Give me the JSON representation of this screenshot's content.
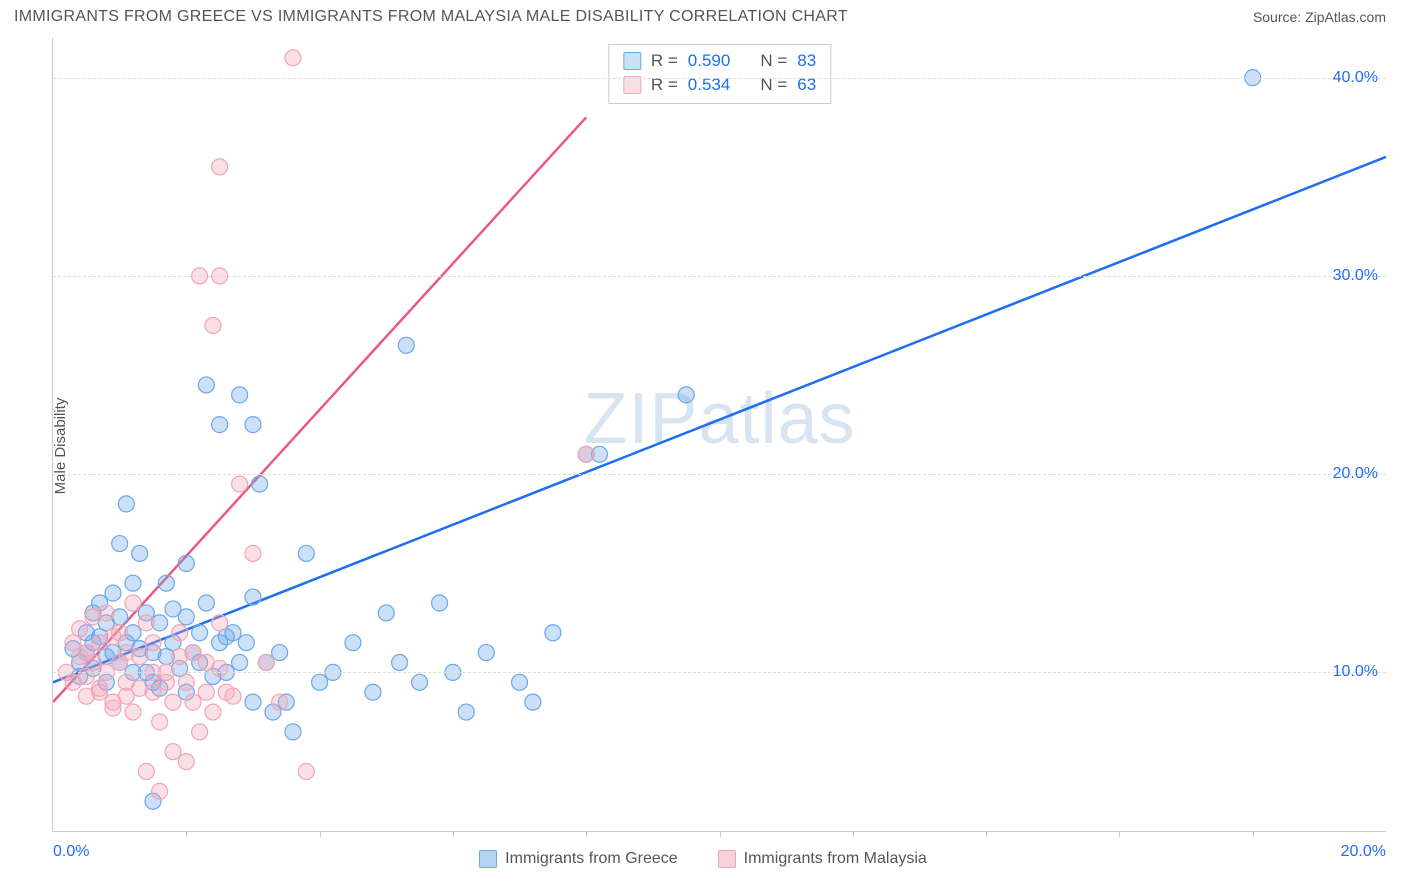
{
  "title": "IMMIGRANTS FROM GREECE VS IMMIGRANTS FROM MALAYSIA MALE DISABILITY CORRELATION CHART",
  "source": "Source: ZipAtlas.com",
  "watermark": "ZIPatlas",
  "ylabel": "Male Disability",
  "chart": {
    "type": "scatter",
    "background_color": "#ffffff",
    "grid_color": "#dddddd",
    "axis_color": "#cccccc",
    "tick_text_color": "#1e6ff0",
    "label_text_color": "#555555",
    "title_color": "#555555",
    "title_fontsize": 16,
    "label_fontsize": 15,
    "tick_fontsize": 16,
    "marker_radius": 8,
    "marker_fill_opacity": 0.35,
    "marker_stroke_width": 1.2,
    "xlim": [
      0,
      20
    ],
    "ylim": [
      2,
      42
    ],
    "x_ticks": [
      0,
      20
    ],
    "x_tick_labels": [
      "0.0%",
      "20.0%"
    ],
    "y_ticks": [
      10,
      20,
      30,
      40
    ],
    "y_tick_labels": [
      "10.0%",
      "20.0%",
      "30.0%",
      "40.0%"
    ],
    "x_minor_ticks": [
      2,
      4,
      6,
      8,
      10,
      12,
      14,
      16,
      18
    ],
    "series": [
      {
        "name": "Immigrants from Greece",
        "color": "#6ca7e8",
        "fill": "rgba(108,167,232,0.35)",
        "stroke": "#6ca7e8",
        "trend_color": "#1e6ff0",
        "trend": {
          "x1": 0,
          "y1": 9.5,
          "x2": 20,
          "y2": 36.0
        },
        "r_value": "0.590",
        "n_value": "83",
        "points": [
          [
            0.3,
            11.2
          ],
          [
            0.4,
            10.5
          ],
          [
            0.5,
            11.0
          ],
          [
            0.5,
            12.0
          ],
          [
            0.6,
            11.5
          ],
          [
            0.6,
            10.2
          ],
          [
            0.7,
            11.8
          ],
          [
            0.7,
            13.5
          ],
          [
            0.8,
            10.8
          ],
          [
            0.8,
            12.5
          ],
          [
            0.9,
            11.0
          ],
          [
            0.9,
            14.0
          ],
          [
            1.0,
            10.5
          ],
          [
            1.0,
            16.5
          ],
          [
            1.1,
            11.5
          ],
          [
            1.1,
            18.5
          ],
          [
            1.2,
            12.0
          ],
          [
            1.2,
            10.0
          ],
          [
            1.3,
            11.2
          ],
          [
            1.3,
            16.0
          ],
          [
            1.4,
            13.0
          ],
          [
            1.5,
            11.0
          ],
          [
            1.5,
            9.5
          ],
          [
            1.6,
            12.5
          ],
          [
            1.7,
            10.8
          ],
          [
            1.7,
            14.5
          ],
          [
            1.8,
            11.5
          ],
          [
            1.9,
            10.2
          ],
          [
            2.0,
            12.8
          ],
          [
            2.0,
            9.0
          ],
          [
            2.1,
            11.0
          ],
          [
            2.2,
            10.5
          ],
          [
            2.3,
            13.5
          ],
          [
            2.3,
            24.5
          ],
          [
            2.5,
            11.5
          ],
          [
            2.5,
            22.5
          ],
          [
            2.6,
            10.0
          ],
          [
            2.7,
            12.0
          ],
          [
            2.8,
            24.0
          ],
          [
            2.9,
            11.5
          ],
          [
            3.0,
            22.5
          ],
          [
            3.0,
            8.5
          ],
          [
            3.1,
            19.5
          ],
          [
            3.2,
            10.5
          ],
          [
            3.3,
            8.0
          ],
          [
            3.4,
            11.0
          ],
          [
            3.5,
            8.5
          ],
          [
            3.6,
            7.0
          ],
          [
            3.8,
            16.0
          ],
          [
            4.0,
            9.5
          ],
          [
            4.2,
            10.0
          ],
          [
            4.5,
            11.5
          ],
          [
            4.8,
            9.0
          ],
          [
            5.0,
            13.0
          ],
          [
            5.2,
            10.5
          ],
          [
            5.3,
            26.5
          ],
          [
            5.5,
            9.5
          ],
          [
            5.8,
            13.5
          ],
          [
            6.0,
            10.0
          ],
          [
            6.2,
            8.0
          ],
          [
            6.5,
            11.0
          ],
          [
            7.0,
            9.5
          ],
          [
            7.2,
            8.5
          ],
          [
            7.5,
            12.0
          ],
          [
            8.0,
            21.0
          ],
          [
            8.2,
            21.0
          ],
          [
            9.5,
            24.0
          ],
          [
            18.0,
            40.0
          ],
          [
            0.4,
            9.8
          ],
          [
            0.6,
            13.0
          ],
          [
            0.8,
            9.5
          ],
          [
            1.0,
            12.8
          ],
          [
            1.2,
            14.5
          ],
          [
            1.4,
            10.0
          ],
          [
            1.6,
            9.2
          ],
          [
            1.8,
            13.2
          ],
          [
            2.0,
            15.5
          ],
          [
            2.2,
            12.0
          ],
          [
            2.4,
            9.8
          ],
          [
            2.6,
            11.8
          ],
          [
            2.8,
            10.5
          ],
          [
            3.0,
            13.8
          ],
          [
            1.5,
            3.5
          ]
        ]
      },
      {
        "name": "Immigrants from Malaysia",
        "color": "#f0a5b8",
        "fill": "rgba(240,165,184,0.35)",
        "stroke": "#f0a5b8",
        "trend_color": "#e85a85",
        "trend": {
          "x1": 0,
          "y1": 8.5,
          "x2": 8.0,
          "y2": 38.0
        },
        "r_value": "0.534",
        "n_value": "63",
        "points": [
          [
            0.2,
            10.0
          ],
          [
            0.3,
            11.5
          ],
          [
            0.3,
            9.5
          ],
          [
            0.4,
            10.8
          ],
          [
            0.4,
            12.2
          ],
          [
            0.5,
            9.8
          ],
          [
            0.5,
            11.0
          ],
          [
            0.6,
            10.5
          ],
          [
            0.6,
            12.8
          ],
          [
            0.7,
            9.2
          ],
          [
            0.7,
            11.5
          ],
          [
            0.8,
            10.0
          ],
          [
            0.8,
            13.0
          ],
          [
            0.9,
            11.8
          ],
          [
            0.9,
            8.5
          ],
          [
            1.0,
            10.5
          ],
          [
            1.0,
            12.0
          ],
          [
            1.1,
            9.5
          ],
          [
            1.1,
            11.0
          ],
          [
            1.2,
            13.5
          ],
          [
            1.2,
            8.0
          ],
          [
            1.3,
            10.8
          ],
          [
            1.4,
            12.5
          ],
          [
            1.5,
            9.0
          ],
          [
            1.5,
            11.5
          ],
          [
            1.6,
            7.5
          ],
          [
            1.7,
            10.0
          ],
          [
            1.8,
            8.5
          ],
          [
            1.9,
            12.0
          ],
          [
            2.0,
            9.5
          ],
          [
            2.1,
            11.0
          ],
          [
            2.2,
            7.0
          ],
          [
            2.3,
            10.5
          ],
          [
            2.4,
            8.0
          ],
          [
            2.5,
            12.5
          ],
          [
            2.6,
            9.0
          ],
          [
            2.8,
            19.5
          ],
          [
            3.0,
            16.0
          ],
          [
            3.2,
            10.5
          ],
          [
            3.4,
            8.5
          ],
          [
            2.5,
            35.5
          ],
          [
            2.2,
            30.0
          ],
          [
            2.5,
            30.0
          ],
          [
            2.4,
            27.5
          ],
          [
            3.6,
            41.0
          ],
          [
            3.8,
            5.0
          ],
          [
            1.4,
            5.0
          ],
          [
            1.6,
            4.0
          ],
          [
            1.8,
            6.0
          ],
          [
            2.0,
            5.5
          ],
          [
            0.5,
            8.8
          ],
          [
            0.7,
            9.0
          ],
          [
            0.9,
            8.2
          ],
          [
            1.1,
            8.8
          ],
          [
            1.3,
            9.2
          ],
          [
            1.5,
            10.0
          ],
          [
            1.7,
            9.5
          ],
          [
            1.9,
            10.8
          ],
          [
            2.1,
            8.5
          ],
          [
            2.3,
            9.0
          ],
          [
            2.5,
            10.2
          ],
          [
            2.7,
            8.8
          ],
          [
            8.0,
            21.0
          ]
        ]
      }
    ],
    "bottom_legend": [
      {
        "label": "Immigrants from Greece",
        "fill": "rgba(108,167,232,0.5)",
        "stroke": "#6ca7e8"
      },
      {
        "label": "Immigrants from Malaysia",
        "fill": "rgba(240,165,184,0.5)",
        "stroke": "#f0a5b8"
      }
    ],
    "stats_labels": {
      "r": "R =",
      "n": "N ="
    }
  }
}
